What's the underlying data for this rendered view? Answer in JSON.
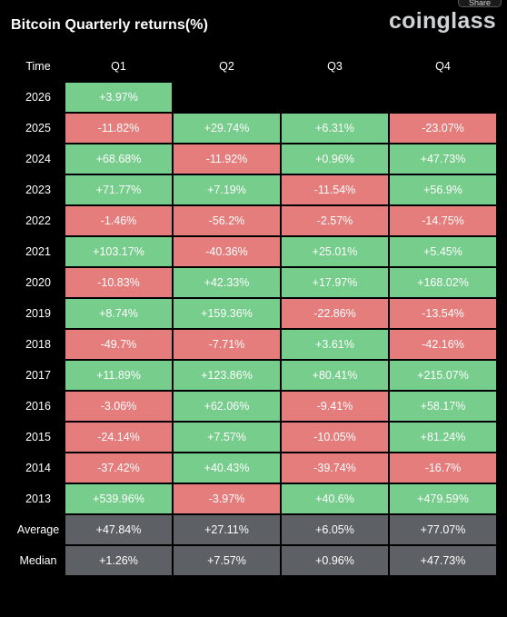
{
  "share_label": "Share",
  "header": {
    "title": "Bitcoin Quarterly returns(%)",
    "brand": "coinglass"
  },
  "colors": {
    "positive": "#77cd8c",
    "negative": "#e67d7d",
    "summary": "#5d6064",
    "background": "#000000"
  },
  "chart_data": {
    "type": "heatmap",
    "title": "Bitcoin Quarterly returns(%)",
    "row_header": "Time",
    "columns": [
      "Q1",
      "Q2",
      "Q3",
      "Q4"
    ],
    "rows": [
      {
        "label": "2026",
        "values": [
          "+3.97%",
          null,
          null,
          null
        ]
      },
      {
        "label": "2025",
        "values": [
          "-11.82%",
          "+29.74%",
          "+6.31%",
          "-23.07%"
        ]
      },
      {
        "label": "2024",
        "values": [
          "+68.68%",
          "-11.92%",
          "+0.96%",
          "+47.73%"
        ]
      },
      {
        "label": "2023",
        "values": [
          "+71.77%",
          "+7.19%",
          "-11.54%",
          "+56.9%"
        ]
      },
      {
        "label": "2022",
        "values": [
          "-1.46%",
          "-56.2%",
          "-2.57%",
          "-14.75%"
        ]
      },
      {
        "label": "2021",
        "values": [
          "+103.17%",
          "-40.36%",
          "+25.01%",
          "+5.45%"
        ]
      },
      {
        "label": "2020",
        "values": [
          "-10.83%",
          "+42.33%",
          "+17.97%",
          "+168.02%"
        ]
      },
      {
        "label": "2019",
        "values": [
          "+8.74%",
          "+159.36%",
          "-22.86%",
          "-13.54%"
        ]
      },
      {
        "label": "2018",
        "values": [
          "-49.7%",
          "-7.71%",
          "+3.61%",
          "-42.16%"
        ]
      },
      {
        "label": "2017",
        "values": [
          "+11.89%",
          "+123.86%",
          "+80.41%",
          "+215.07%"
        ]
      },
      {
        "label": "2016",
        "values": [
          "-3.06%",
          "+62.06%",
          "-9.41%",
          "+58.17%"
        ]
      },
      {
        "label": "2015",
        "values": [
          "-24.14%",
          "+7.57%",
          "-10.05%",
          "+81.24%"
        ]
      },
      {
        "label": "2014",
        "values": [
          "-37.42%",
          "+40.43%",
          "-39.74%",
          "-16.7%"
        ]
      },
      {
        "label": "2013",
        "values": [
          "+539.96%",
          "-3.97%",
          "+40.6%",
          "+479.59%"
        ]
      }
    ],
    "summary_rows": [
      {
        "label": "Average",
        "values": [
          "+47.84%",
          "+27.11%",
          "+6.05%",
          "+77.07%"
        ]
      },
      {
        "label": "Median",
        "values": [
          "+1.26%",
          "+7.57%",
          "+0.96%",
          "+47.73%"
        ]
      }
    ]
  }
}
